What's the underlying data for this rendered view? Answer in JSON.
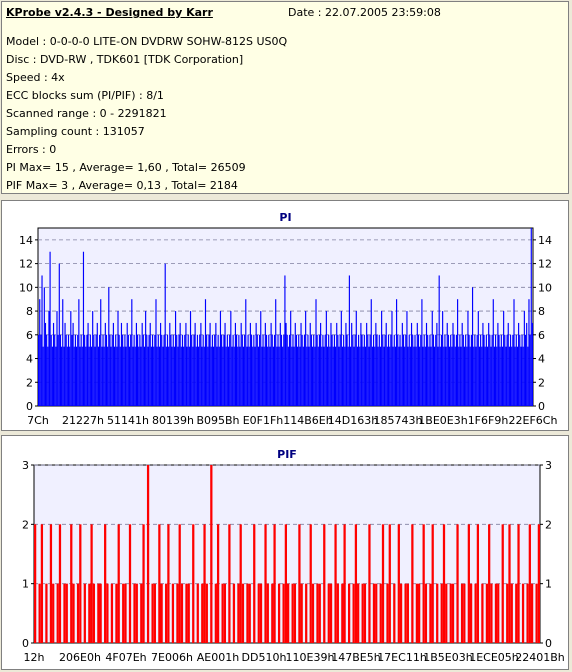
{
  "header": {
    "title": "KProbe v2.4.3 - Designed by Karr",
    "date": "Date : 22.07.2005 23:59:08"
  },
  "info": [
    "Model : 0-0-0-0 LITE-ON DVDRW SOHW-812S  US0Q",
    "Disc : DVD-RW , TDK601 [TDK Corporation]",
    "Speed : 4x",
    "ECC blocks sum (PI/PIF) : 8/1",
    "Scanned range : 0 - 2291821",
    "Sampling count : 131057",
    "Errors : 0",
    "PI Max= 15 , Average= 1,60 , Total= 26509",
    "PIF Max= 3 , Average= 0,13 , Total= 2184"
  ],
  "colors": {
    "pi_bar": "#0000ff",
    "pif_bar": "#ff0000",
    "title_text": "#000080",
    "plot_bg": "#f0f0ff"
  },
  "chart_data": [
    {
      "type": "bar",
      "title": "PI",
      "ylim": [
        0,
        15
      ],
      "yticks": [
        0,
        2,
        4,
        6,
        8,
        10,
        12,
        14
      ],
      "grid": true,
      "x_tick_labels": [
        "7Ch",
        "21227h",
        "51141h",
        "80139h",
        "B095Bh",
        "E0F1Fh",
        "114B6Eh",
        "14D163h",
        "185743h",
        "1BE0E3h",
        "1F6F9h",
        "22EF6Ch"
      ],
      "series": [
        {
          "values": [
            6,
            9,
            6,
            11,
            5,
            10,
            7,
            6,
            5,
            8,
            13,
            6,
            5,
            7,
            6,
            5,
            8,
            6,
            12,
            6,
            5,
            9,
            5,
            7,
            6,
            5,
            6,
            5,
            8,
            6,
            7,
            5,
            6,
            5,
            6,
            9,
            5,
            6,
            5,
            13,
            6,
            5,
            6,
            7,
            5,
            6,
            5,
            8,
            6,
            5,
            6,
            7,
            5,
            6,
            9,
            5,
            6,
            5,
            7,
            6,
            5,
            10,
            6,
            5,
            6,
            7,
            5,
            6,
            5,
            8,
            6,
            5,
            7,
            6,
            5,
            6,
            5,
            7,
            6,
            5,
            6,
            9,
            5,
            6,
            5,
            7,
            6,
            5,
            6,
            5,
            7,
            6,
            5,
            8,
            6,
            5,
            6,
            7,
            5,
            6,
            5,
            6,
            9,
            5,
            6,
            5,
            7,
            6,
            5,
            6,
            12,
            5,
            6,
            5,
            7,
            6,
            5,
            6,
            5,
            8,
            6,
            5,
            6,
            7,
            5,
            6,
            5,
            6,
            7,
            5,
            6,
            5,
            8,
            6,
            5,
            6,
            7,
            5,
            6,
            5,
            6,
            7,
            5,
            6,
            5,
            9,
            6,
            5,
            6,
            7,
            5,
            6,
            5,
            6,
            7,
            5,
            6,
            5,
            8,
            6,
            5,
            6,
            7,
            5,
            6,
            5,
            6,
            8,
            5,
            6,
            5,
            7,
            6,
            5,
            6,
            5,
            7,
            6,
            5,
            6,
            9,
            5,
            6,
            5,
            7,
            6,
            5,
            6,
            5,
            7,
            6,
            5,
            6,
            8,
            5,
            6,
            5,
            7,
            6,
            5,
            6,
            5,
            7,
            6,
            5,
            6,
            9,
            5,
            6,
            5,
            7,
            6,
            5,
            6,
            11,
            7,
            6,
            5,
            6,
            8,
            5,
            6,
            5,
            7,
            6,
            5,
            6,
            5,
            7,
            6,
            5,
            6,
            8,
            5,
            6,
            5,
            7,
            6,
            5,
            6,
            5,
            9,
            6,
            5,
            6,
            7,
            5,
            6,
            5,
            6,
            8,
            5,
            6,
            5,
            7,
            6,
            5,
            6,
            5,
            7,
            6,
            5,
            6,
            8,
            5,
            6,
            5,
            7,
            6,
            5,
            11,
            5,
            7,
            6,
            5,
            6,
            8,
            5,
            6,
            5,
            7,
            6,
            5,
            6,
            5,
            7,
            6,
            5,
            6,
            9,
            5,
            6,
            5,
            7,
            6,
            5,
            6,
            5,
            8,
            6,
            5,
            6,
            7,
            5,
            6,
            5,
            6,
            8,
            5,
            6,
            5,
            9,
            6,
            5,
            6,
            5,
            7,
            6,
            5,
            6,
            8,
            5,
            6,
            5,
            7,
            6,
            5,
            6,
            5,
            7,
            6,
            5,
            6,
            9,
            5,
            6,
            5,
            7,
            6,
            5,
            6,
            5,
            8,
            6,
            5,
            6,
            7,
            5,
            11,
            5,
            6,
            8,
            5,
            6,
            5,
            7,
            6,
            5,
            6,
            5,
            7,
            6,
            5,
            6,
            9,
            5,
            6,
            5,
            7,
            6,
            5,
            6,
            5,
            8,
            6,
            5,
            6,
            10,
            5,
            6,
            5,
            6,
            8,
            5,
            6,
            5,
            7,
            6,
            5,
            6,
            5,
            7,
            6,
            5,
            6,
            9,
            5,
            6,
            5,
            7,
            6,
            5,
            6,
            5,
            8,
            6,
            5,
            6,
            7,
            5,
            6,
            5,
            6,
            9,
            5,
            6,
            5,
            7,
            6,
            5,
            6,
            5,
            8,
            6,
            7,
            5,
            9,
            6,
            15,
            7
          ]
        }
      ]
    },
    {
      "type": "bar",
      "title": "PIF",
      "ylim": [
        0,
        3
      ],
      "yticks": [
        0,
        1,
        2,
        3
      ],
      "grid": true,
      "x_tick_labels": [
        "12h",
        "206E0h",
        "4F07Eh",
        "7E006h",
        "AE001h",
        "DD510h",
        "110E39h",
        "147BE5h",
        "17EC11h",
        "1B5E03h",
        "1ECE05h",
        "22401Bh"
      ],
      "series": [
        {
          "values": [
            2,
            0,
            1,
            2,
            0,
            1,
            0,
            2,
            1,
            0,
            1,
            2,
            0,
            1,
            1,
            0,
            2,
            1,
            0,
            1,
            2,
            0,
            1,
            0,
            1,
            2,
            1,
            0,
            1,
            1,
            0,
            2,
            1,
            0,
            1,
            0,
            1,
            2,
            0,
            1,
            1,
            0,
            2,
            0,
            1,
            1,
            0,
            1,
            2,
            0,
            3,
            0,
            1,
            1,
            0,
            2,
            1,
            0,
            1,
            2,
            0,
            1,
            0,
            1,
            2,
            1,
            0,
            1,
            1,
            0,
            2,
            0,
            1,
            0,
            1,
            2,
            1,
            0,
            3,
            0,
            1,
            2,
            0,
            1,
            1,
            0,
            2,
            0,
            1,
            0,
            1,
            2,
            1,
            0,
            1,
            1,
            0,
            2,
            0,
            1,
            1,
            0,
            2,
            1,
            0,
            1,
            2,
            0,
            1,
            0,
            1,
            2,
            1,
            0,
            1,
            1,
            0,
            2,
            1,
            0,
            1,
            0,
            2,
            1,
            0,
            1,
            1,
            0,
            2,
            0,
            1,
            1,
            0,
            2,
            1,
            0,
            1,
            2,
            0,
            1,
            0,
            1,
            2,
            1,
            0,
            1,
            1,
            0,
            2,
            0,
            1,
            1,
            0,
            1,
            2,
            0,
            1,
            2,
            0,
            1,
            0,
            2,
            1,
            0,
            1,
            1,
            0,
            2,
            0,
            1,
            1,
            0,
            2,
            1,
            0,
            1,
            2,
            0,
            1,
            0,
            1,
            2,
            1,
            0,
            1,
            1,
            0,
            2,
            0,
            1,
            1,
            0,
            2,
            1,
            0,
            1,
            2,
            0,
            1,
            0,
            1,
            2,
            1,
            0,
            1,
            1,
            0,
            2,
            0,
            1,
            2,
            1,
            0,
            1,
            2,
            0,
            1,
            0,
            1,
            2,
            1,
            0,
            1,
            2
          ]
        }
      ]
    }
  ]
}
